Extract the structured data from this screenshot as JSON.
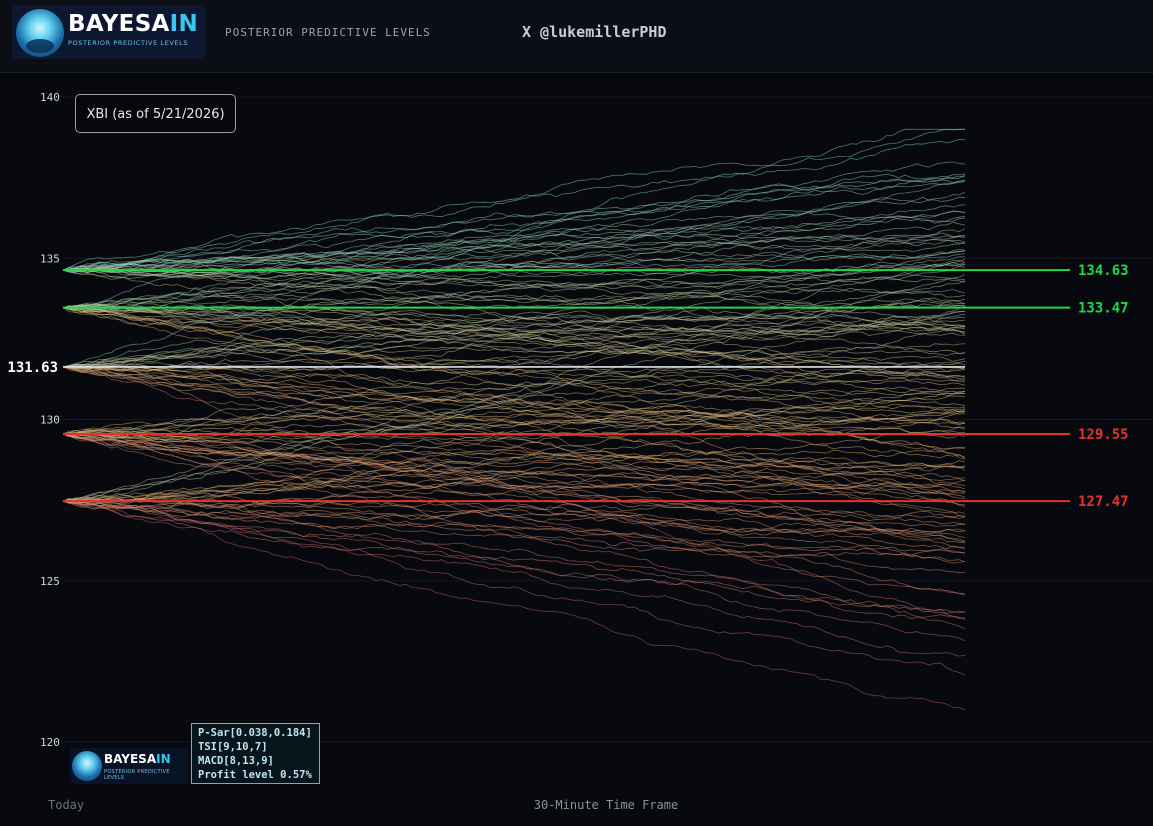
{
  "header": {
    "logo_main": "BAYESA",
    "logo_accent": "IN",
    "logo_sub": "POSTERIOR PREDICTIVE LEVELS",
    "title": "POSTERIOR PREDICTIVE LEVELS",
    "handle": "X @lukemillerPHD"
  },
  "info_box": "XBI (as of 5/21/2026)",
  "indicators": [
    "P-Sar[0.038,0.184]",
    "TSI[9,10,7]",
    "MACD[8,13,9]",
    "Profit level 0.57%"
  ],
  "colors": {
    "green_level": "#22d64a",
    "red_level": "#e8312c",
    "current_level": "#dfe3e8",
    "path_high": "#7fd6c8",
    "path_mid": "#e0b070",
    "path_low": "#c0506a"
  },
  "chart_data": {
    "type": "line",
    "title": "",
    "xlabel": "30-Minute Time Frame",
    "x_start_label": "Today",
    "ylabel": "",
    "ylim": [
      119.5,
      140.5
    ],
    "y_ticks": [
      120,
      125,
      130,
      135,
      140
    ],
    "grid": false,
    "current_price": 131.63,
    "levels": [
      {
        "value": 134.63,
        "kind": "resistance",
        "label": "134.63"
      },
      {
        "value": 133.47,
        "kind": "resistance",
        "label": "133.47"
      },
      {
        "value": 129.55,
        "kind": "support",
        "label": "129.55"
      },
      {
        "value": 127.47,
        "kind": "support",
        "label": "127.47"
      }
    ],
    "simulated_paths": {
      "path_count_per_origin": 30,
      "origins": [
        134.63,
        133.47,
        131.63,
        129.55,
        127.47
      ],
      "end_range": [
        119.7,
        139.0
      ]
    }
  }
}
